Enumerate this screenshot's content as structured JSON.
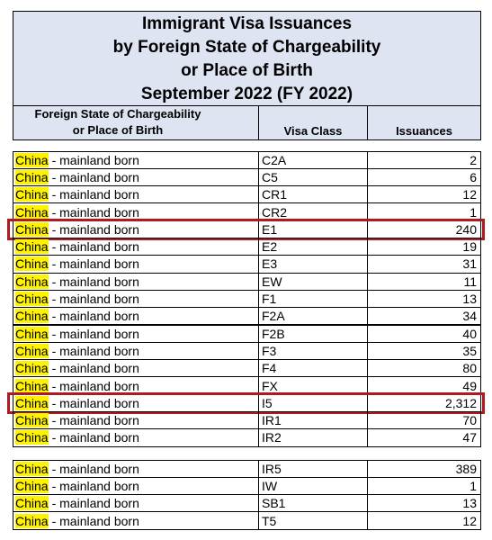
{
  "title": [
    "Immigrant Visa Issuances",
    "by Foreign State of Chargeability",
    "or Place of Birth",
    "September 2022 (FY 2022)"
  ],
  "header": {
    "state": [
      "Foreign State of Chargeability",
      "or Place of Birth"
    ],
    "class": "Visa Class",
    "issuances": "Issuances"
  },
  "groups": [
    {
      "rows": [
        {
          "country": "China",
          "place": "- mainland born",
          "class": "C2A",
          "issuances": "2"
        },
        {
          "country": "China",
          "place": "- mainland born",
          "class": "C5",
          "issuances": "6"
        },
        {
          "country": "China",
          "place": "- mainland born",
          "class": "CR1",
          "issuances": "12"
        },
        {
          "country": "China",
          "place": "- mainland born",
          "class": "CR2",
          "issuances": "1"
        },
        {
          "country": "China",
          "place": "- mainland born",
          "class": "E1",
          "issuances": "240",
          "outlined": true
        },
        {
          "country": "China",
          "place": "- mainland born",
          "class": "E2",
          "issuances": "19"
        },
        {
          "country": "China",
          "place": "- mainland born",
          "class": "E3",
          "issuances": "31"
        },
        {
          "country": "China",
          "place": "- mainland born",
          "class": "EW",
          "issuances": "11"
        },
        {
          "country": "China",
          "place": "- mainland born",
          "class": "F1",
          "issuances": "13"
        },
        {
          "country": "China",
          "place": "- mainland born",
          "class": "F2A",
          "issuances": "34"
        },
        {
          "country": "China",
          "place": "- mainland born",
          "class": "F2B",
          "issuances": "40"
        },
        {
          "country": "China",
          "place": "- mainland born",
          "class": "F3",
          "issuances": "35"
        },
        {
          "country": "China",
          "place": "- mainland born",
          "class": "F4",
          "issuances": "80"
        },
        {
          "country": "China",
          "place": "- mainland born",
          "class": "FX",
          "issuances": "49"
        },
        {
          "country": "China",
          "place": "- mainland born",
          "class": "I5",
          "issuances": "2,312",
          "outlined": true
        },
        {
          "country": "China",
          "place": "- mainland born",
          "class": "IR1",
          "issuances": "70"
        },
        {
          "country": "China",
          "place": "- mainland born",
          "class": "IR2",
          "issuances": "47"
        }
      ]
    },
    {
      "rows": [
        {
          "country": "China",
          "place": "- mainland born",
          "class": "IR5",
          "issuances": "389"
        },
        {
          "country": "China",
          "place": "- mainland born",
          "class": "IW",
          "issuances": "1"
        },
        {
          "country": "China",
          "place": "- mainland born",
          "class": "SB1",
          "issuances": "13"
        },
        {
          "country": "China",
          "place": "- mainland born",
          "class": "T5",
          "issuances": "12"
        }
      ]
    }
  ]
}
